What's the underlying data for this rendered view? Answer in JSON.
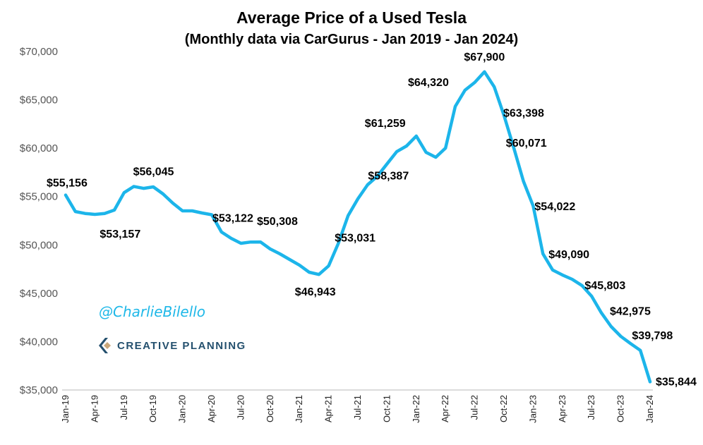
{
  "chart_data": {
    "type": "line",
    "title": "Average Price of a Used Tesla",
    "subtitle": "(Monthly data via CarGurus - Jan 2019 - Jan 2024)",
    "ylim": [
      35000,
      70000
    ],
    "yticks": [
      35000,
      40000,
      45000,
      50000,
      55000,
      60000,
      65000,
      70000
    ],
    "ytick_labels": [
      "$35,000",
      "$40,000",
      "$45,000",
      "$50,000",
      "$55,000",
      "$60,000",
      "$65,000",
      "$70,000"
    ],
    "xtick_labels": [
      "Jan-19",
      "Apr-19",
      "Jul-19",
      "Oct-19",
      "Jan-20",
      "Apr-20",
      "Jul-20",
      "Oct-20",
      "Jan-21",
      "Apr-21",
      "Jul-21",
      "Oct-21",
      "Jan-22",
      "Apr-22",
      "Jul-22",
      "Oct-22",
      "Jan-23",
      "Apr-23",
      "Jul-23",
      "Oct-23",
      "Jan-24"
    ],
    "grid": false,
    "line_color": "#1cb5ea",
    "months": [
      "Jan-19",
      "Feb-19",
      "Mar-19",
      "Apr-19",
      "May-19",
      "Jun-19",
      "Jul-19",
      "Aug-19",
      "Sep-19",
      "Oct-19",
      "Nov-19",
      "Dec-19",
      "Jan-20",
      "Feb-20",
      "Mar-20",
      "Apr-20",
      "May-20",
      "Jun-20",
      "Jul-20",
      "Aug-20",
      "Sep-20",
      "Oct-20",
      "Nov-20",
      "Dec-20",
      "Jan-21",
      "Feb-21",
      "Mar-21",
      "Apr-21",
      "May-21",
      "Jun-21",
      "Jul-21",
      "Aug-21",
      "Sep-21",
      "Oct-21",
      "Nov-21",
      "Dec-21",
      "Jan-22",
      "Feb-22",
      "Mar-22",
      "Apr-22",
      "May-22",
      "Jun-22",
      "Jul-22",
      "Aug-22",
      "Sep-22",
      "Oct-22",
      "Nov-22",
      "Dec-22",
      "Jan-23",
      "Feb-23",
      "Mar-23",
      "Apr-23",
      "May-23",
      "Jun-23",
      "Jul-23",
      "Aug-23",
      "Sep-23",
      "Oct-23",
      "Nov-23",
      "Dec-23",
      "Jan-24"
    ],
    "values": [
      55156,
      53450,
      53250,
      53157,
      53250,
      53600,
      55400,
      56045,
      55850,
      56000,
      55270,
      54320,
      53520,
      53520,
      53300,
      53122,
      51330,
      50680,
      50170,
      50300,
      50308,
      49580,
      49070,
      48490,
      47910,
      47180,
      46943,
      47830,
      50170,
      53031,
      54760,
      56220,
      57100,
      58387,
      59650,
      60230,
      61259,
      59570,
      59060,
      60010,
      64320,
      66000,
      66800,
      67900,
      66350,
      63398,
      60071,
      56580,
      54022,
      49090,
      47400,
      46890,
      46450,
      45803,
      44700,
      42975,
      41560,
      40540,
      39798,
      39100,
      35844
    ],
    "data_labels": [
      {
        "month": "Jan-19",
        "text": "$55,156"
      },
      {
        "month": "Apr-19",
        "text": "$53,157"
      },
      {
        "month": "Aug-19",
        "text": "$56,045"
      },
      {
        "month": "Apr-20",
        "text": "$53,122"
      },
      {
        "month": "Sep-20",
        "text": "$50,308"
      },
      {
        "month": "Mar-21",
        "text": "$46,943"
      },
      {
        "month": "Jun-21",
        "text": "$53,031"
      },
      {
        "month": "Oct-21",
        "text": "$58,387"
      },
      {
        "month": "Jan-22",
        "text": "$61,259"
      },
      {
        "month": "May-22",
        "text": "$64,320"
      },
      {
        "month": "Aug-22",
        "text": "$67,900"
      },
      {
        "month": "Oct-22",
        "text": "$63,398"
      },
      {
        "month": "Nov-22",
        "text": "$60,071"
      },
      {
        "month": "Jan-23",
        "text": "$54,022"
      },
      {
        "month": "Feb-23",
        "text": "$49,090"
      },
      {
        "month": "Jun-23",
        "text": "$45,803"
      },
      {
        "month": "Aug-23",
        "text": "$42,975"
      },
      {
        "month": "Nov-23",
        "text": "$39,798"
      },
      {
        "month": "Jan-24",
        "text": "$35,844"
      }
    ]
  },
  "watermark": {
    "handle": "@CharlieBilello",
    "logo_text": "CREATIVE PLANNING",
    "handle_color": "#1fb8e8",
    "logo_color": "#24506e",
    "logo_accent": "#c9a77a"
  }
}
